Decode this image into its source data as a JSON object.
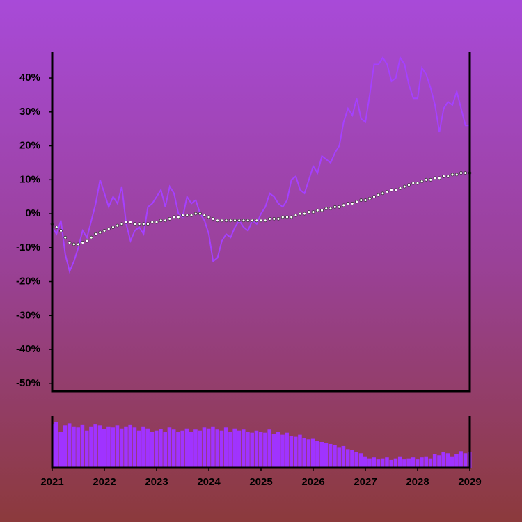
{
  "chart_data": {
    "type": "line",
    "x": [
      2021,
      2021.083,
      2021.167,
      2021.25,
      2021.333,
      2021.417,
      2021.5,
      2021.583,
      2021.667,
      2021.75,
      2021.833,
      2021.917,
      2022,
      2022.083,
      2022.167,
      2022.25,
      2022.333,
      2022.417,
      2022.5,
      2022.583,
      2022.667,
      2022.75,
      2022.833,
      2022.917,
      2023,
      2023.083,
      2023.167,
      2023.25,
      2023.333,
      2023.417,
      2023.5,
      2023.583,
      2023.667,
      2023.75,
      2023.833,
      2023.917,
      2024,
      2024.083,
      2024.167,
      2024.25,
      2024.333,
      2024.417,
      2024.5,
      2024.583,
      2024.667,
      2024.75,
      2024.833,
      2024.917,
      2025,
      2025.083,
      2025.167,
      2025.25,
      2025.333,
      2025.417,
      2025.5,
      2025.583,
      2025.667,
      2025.75,
      2025.833,
      2025.917,
      2026,
      2026.083,
      2026.167,
      2026.25,
      2026.333,
      2026.417,
      2026.5,
      2026.583,
      2026.667,
      2026.75,
      2026.833,
      2026.917,
      2027,
      2027.083,
      2027.167,
      2027.25,
      2027.333,
      2027.417,
      2027.5,
      2027.583,
      2027.667,
      2027.75,
      2027.833,
      2027.917,
      2028,
      2028.083,
      2028.167,
      2028.25,
      2028.333,
      2028.417,
      2028.5,
      2028.583,
      2028.667,
      2028.75,
      2028.833,
      2028.917,
      2029
    ],
    "series": [
      {
        "color": "#a540ff",
        "values": [
          -4,
          -6,
          -2,
          -12,
          -17,
          -14,
          -10,
          -5,
          -7,
          -2,
          3,
          10,
          6,
          2,
          5,
          3,
          8,
          -3,
          -8,
          -5,
          -4,
          -6,
          2,
          3,
          5,
          7,
          2,
          8,
          6,
          0,
          -1,
          5,
          3,
          4,
          0,
          -2,
          -6,
          -14,
          -13,
          -8,
          -6,
          -7,
          -4,
          -2,
          -4,
          -5,
          -2,
          -3,
          0,
          2,
          6,
          5,
          3,
          2,
          4,
          10,
          11,
          7,
          6,
          10,
          14,
          12,
          17,
          16,
          15,
          18,
          20,
          27,
          31,
          29,
          34,
          28,
          27,
          35,
          44,
          44,
          46,
          44,
          39,
          40,
          46,
          44,
          38,
          34,
          34,
          43,
          41,
          37,
          32,
          24,
          31,
          33,
          32,
          36,
          31,
          26,
          26
        ]
      },
      {
        "color": "#ffffff",
        "values": [
          -3,
          -4,
          -5,
          -7,
          -8.5,
          -9,
          -9,
          -8.5,
          -8,
          -7,
          -6,
          -5.5,
          -5,
          -4.5,
          -4,
          -3.5,
          -3,
          -2.5,
          -2.5,
          -3,
          -3,
          -3,
          -3,
          -2.5,
          -2.5,
          -2,
          -2,
          -1.5,
          -1,
          -1,
          -0.5,
          -0.5,
          -0.5,
          0,
          0,
          -0.5,
          -1,
          -1.5,
          -2,
          -2,
          -2,
          -2,
          -2,
          -2,
          -2,
          -2,
          -2,
          -2,
          -2,
          -2,
          -1.5,
          -1.5,
          -1.5,
          -1,
          -1,
          -1,
          -0.5,
          0,
          0,
          0.5,
          0.5,
          1,
          1,
          1.5,
          1.5,
          2,
          2,
          2.5,
          3,
          3,
          3.5,
          4,
          4,
          4.5,
          5,
          5.5,
          6,
          6.5,
          7,
          7,
          7.5,
          8,
          8.5,
          9,
          9,
          9.5,
          10,
          10,
          10.5,
          10.5,
          11,
          11,
          11.5,
          11.5,
          12,
          12,
          12
        ]
      }
    ],
    "volume": {
      "color": "#a033ff",
      "ylim": [
        0,
        100
      ],
      "values": [
        85,
        88,
        70,
        82,
        86,
        80,
        78,
        84,
        72,
        80,
        85,
        82,
        75,
        80,
        78,
        82,
        76,
        80,
        84,
        78,
        72,
        80,
        76,
        70,
        72,
        75,
        70,
        78,
        74,
        70,
        72,
        76,
        70,
        74,
        72,
        78,
        76,
        80,
        74,
        72,
        78,
        70,
        76,
        72,
        74,
        70,
        68,
        72,
        70,
        68,
        74,
        66,
        70,
        64,
        68,
        62,
        60,
        64,
        58,
        55,
        56,
        52,
        50,
        48,
        46,
        44,
        40,
        42,
        36,
        34,
        30,
        28,
        22,
        18,
        20,
        16,
        18,
        20,
        15,
        18,
        22,
        16,
        18,
        20,
        16,
        20,
        22,
        18,
        26,
        24,
        30,
        28,
        22,
        26,
        32,
        28,
        30
      ]
    },
    "xlim": [
      2021,
      2029
    ],
    "xticks": [
      2021,
      2022,
      2023,
      2024,
      2025,
      2026,
      2027,
      2028,
      2029
    ],
    "ylim": [
      -52.3,
      47.6
    ],
    "yticks": [
      {
        "value": -50,
        "label": "-50%"
      },
      {
        "value": -40,
        "label": "-40%"
      },
      {
        "value": -30,
        "label": "-30%"
      },
      {
        "value": -20,
        "label": "-20%"
      },
      {
        "value": -10,
        "label": "-10%"
      },
      {
        "value": 0,
        "label": "0%"
      },
      {
        "value": 10,
        "label": "10%"
      },
      {
        "value": 20,
        "label": "20%"
      },
      {
        "value": 30,
        "label": "30%"
      },
      {
        "value": 40,
        "label": "40%"
      }
    ]
  }
}
